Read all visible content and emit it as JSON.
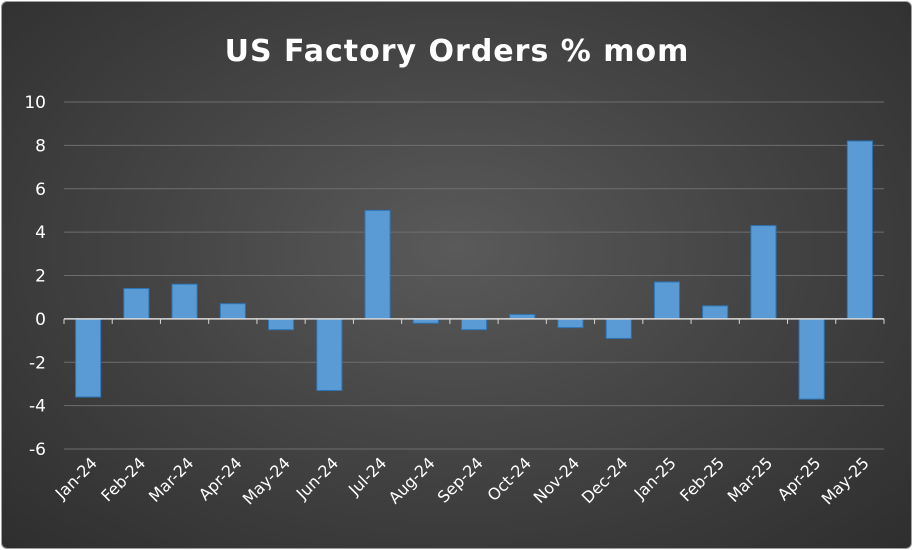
{
  "chart_data": {
    "type": "bar",
    "title": "US Factory Orders % mom",
    "xlabel": "",
    "ylabel": "",
    "categories": [
      "Jan-24",
      "Feb-24",
      "Mar-24",
      "Apr-24",
      "May-24",
      "Jun-24",
      "Jul-24",
      "Aug-24",
      "Sep-24",
      "Oct-24",
      "Nov-24",
      "Dec-24",
      "Jan-25",
      "Feb-25",
      "Mar-25",
      "Apr-25",
      "May-25"
    ],
    "values": [
      -3.6,
      1.4,
      1.6,
      0.7,
      -0.5,
      -3.3,
      5.0,
      -0.2,
      -0.5,
      0.2,
      -0.4,
      -0.9,
      1.7,
      0.6,
      4.3,
      -3.7,
      8.2
    ],
    "ylim": [
      -6,
      10
    ],
    "yticks": [
      10,
      8,
      6,
      4,
      2,
      0,
      -2,
      -4,
      -6
    ],
    "grid": true,
    "legend": "none",
    "bar_color": "#5b9bd5",
    "bar_border": "#2e75b6"
  }
}
